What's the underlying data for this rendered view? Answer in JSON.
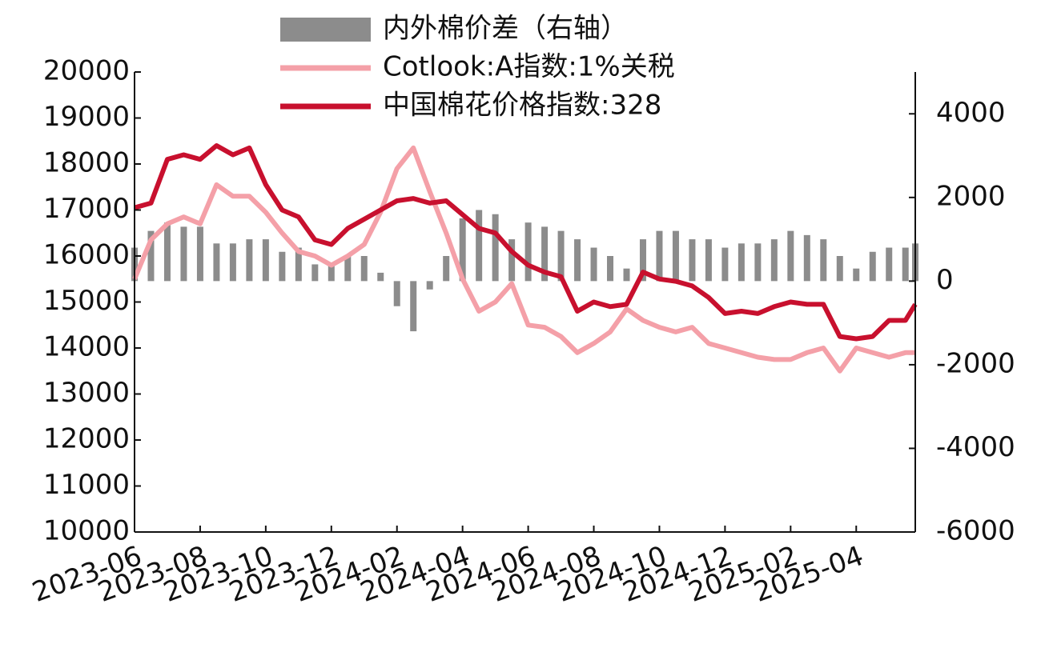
{
  "chart_data": {
    "type": "combo",
    "x": [
      0,
      0.5,
      1,
      1.5,
      2,
      2.5,
      3,
      3.5,
      4,
      4.5,
      5,
      5.5,
      6,
      6.5,
      7,
      7.5,
      8,
      8.5,
      9,
      9.5,
      10,
      10.5,
      11,
      11.5,
      12,
      12.5,
      13,
      13.5,
      14,
      14.5,
      15,
      15.5,
      16,
      16.5,
      17,
      17.5,
      18,
      18.5,
      19,
      19.5,
      20,
      20.5,
      21,
      21.5,
      22,
      22.5,
      23,
      23.5,
      23.8
    ],
    "xlim": [
      0,
      23.8
    ],
    "xticks": [
      {
        "value": 0,
        "label": "2023-06"
      },
      {
        "value": 2,
        "label": "2023-08"
      },
      {
        "value": 4,
        "label": "2023-10"
      },
      {
        "value": 6,
        "label": "2023-12"
      },
      {
        "value": 8,
        "label": "2024-02"
      },
      {
        "value": 10,
        "label": "2024-04"
      },
      {
        "value": 12,
        "label": "2024-06"
      },
      {
        "value": 14,
        "label": "2024-08"
      },
      {
        "value": 16,
        "label": "2024-10"
      },
      {
        "value": 18,
        "label": "2024-12"
      },
      {
        "value": 20,
        "label": "2025-02"
      },
      {
        "value": 22,
        "label": "2025-04"
      }
    ],
    "ylim": [
      10000,
      20000
    ],
    "yticks": [
      10000,
      11000,
      12000,
      13000,
      14000,
      15000,
      16000,
      17000,
      18000,
      19000,
      20000
    ],
    "y2lim": [
      -6000,
      5000
    ],
    "y2ticks": [
      -6000,
      -4000,
      -2000,
      0,
      2000,
      4000
    ],
    "series": [
      {
        "name": "内外棉价差（右轴）",
        "type": "bar",
        "axis": "y2",
        "color": "#8c8c8c",
        "values": [
          800,
          1200,
          1400,
          1300,
          1300,
          900,
          900,
          1000,
          1000,
          700,
          800,
          400,
          400,
          600,
          600,
          200,
          -600,
          -1200,
          -200,
          600,
          1500,
          1700,
          1600,
          1000,
          1400,
          1300,
          1200,
          1000,
          800,
          600,
          300,
          1000,
          1200,
          1200,
          1000,
          1000,
          800,
          900,
          900,
          1000,
          1200,
          1100,
          1000,
          600,
          300,
          700,
          800,
          800,
          900
        ]
      },
      {
        "name": "Cotlook:A指数:1%关税",
        "type": "line",
        "color": "#f4a0a8",
        "values": [
          15500,
          16350,
          16700,
          16850,
          16700,
          17550,
          17300,
          17300,
          16950,
          16500,
          16100,
          16000,
          15800,
          16000,
          16250,
          16950,
          17900,
          18350,
          17400,
          16500,
          15500,
          14800,
          15000,
          15400,
          14500,
          14450,
          14250,
          13900,
          14100,
          14350,
          14850,
          14600,
          14450,
          14350,
          14450,
          14100,
          14000,
          13900,
          13800,
          13750,
          13750,
          13900,
          14000,
          13500,
          14000,
          13900,
          13800,
          13900,
          13900
        ]
      },
      {
        "name": "中国棉花价格指数:328",
        "type": "line",
        "color": "#c8102e",
        "values": [
          17050,
          17150,
          18100,
          18200,
          18100,
          18400,
          18200,
          18350,
          17550,
          17000,
          16850,
          16350,
          16250,
          16600,
          16800,
          17000,
          17200,
          17250,
          17150,
          17200,
          16900,
          16600,
          16500,
          16100,
          15800,
          15650,
          15550,
          14800,
          15000,
          14900,
          14950,
          15650,
          15500,
          15450,
          15350,
          15100,
          14750,
          14800,
          14750,
          14900,
          15000,
          14950,
          14950,
          14250,
          14200,
          14250,
          14600,
          14600,
          14950
        ]
      }
    ]
  }
}
